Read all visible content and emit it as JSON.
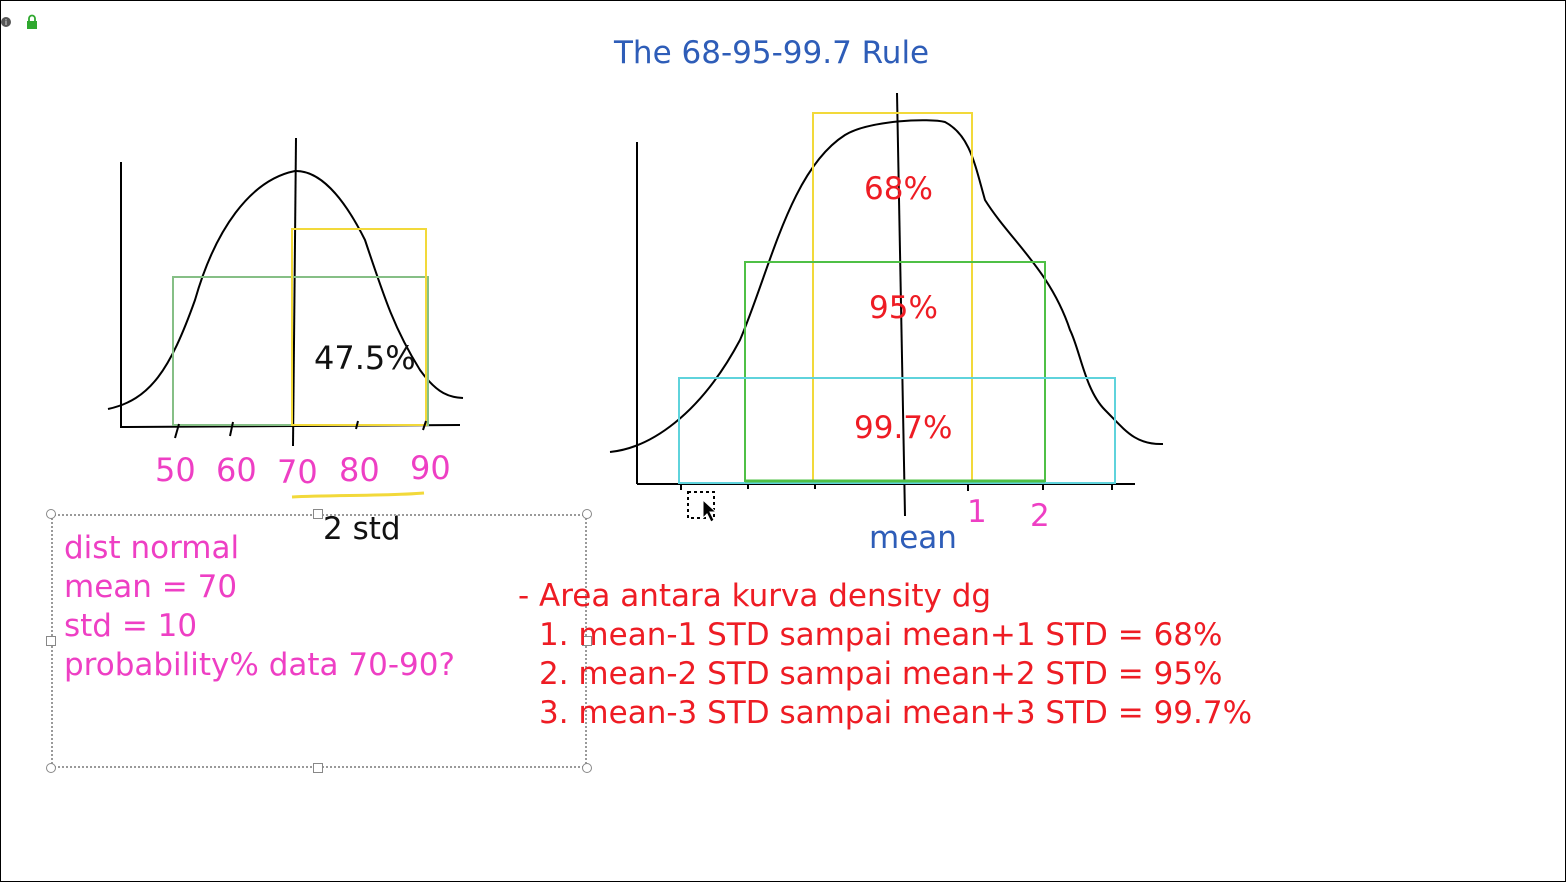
{
  "title": "The 68-95-99.7 Rule",
  "left_chart": {
    "x_ticks": [
      "50",
      "60",
      "70",
      "80",
      "90"
    ],
    "area_label": "47.5%",
    "range_label": "2 std"
  },
  "right_chart": {
    "labels": {
      "p68": "68%",
      "p95": "95%",
      "p997": "99.7%"
    },
    "axis_labels": {
      "one": "1",
      "two": "2",
      "mean": "mean"
    }
  },
  "note": {
    "lines": [
      "dist normal",
      "mean = 70",
      "std = 10",
      "probability% data 70-90?"
    ]
  },
  "rules": {
    "heading": "- Area antara kurva density dg",
    "items": [
      "1. mean-1 STD sampai mean+1 STD = 68%",
      "2. mean-2 STD sampai mean+2 STD = 95%",
      "3. mean-3 STD sampai mean+3 STD = 99.7%"
    ]
  },
  "colors": {
    "pink": "#ee3fc4",
    "red": "#ee1c24",
    "blue": "#2e5db8",
    "yellow": "#f2d93a",
    "green": "#4fc046",
    "lightgreen": "#86bf86",
    "cyan": "#5fd3dc"
  },
  "icons": [
    "info-icon",
    "lock-icon",
    "cursor-icon",
    "marquee-select-icon"
  ]
}
